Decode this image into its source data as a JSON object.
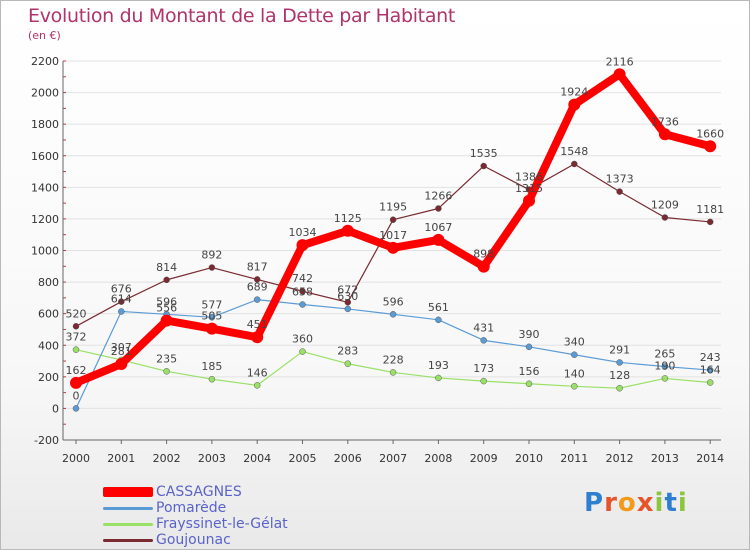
{
  "title": "Evolution du Montant de la Dette par Habitant",
  "subtitle": "(en €)",
  "logo_text": "Proxiti",
  "chart_data": {
    "type": "line",
    "title": "Evolution du Montant de la Dette par Habitant",
    "subtitle": "(en €)",
    "x": [
      "2000",
      "2001",
      "2002",
      "2003",
      "2004",
      "2005",
      "2006",
      "2007",
      "2008",
      "2009",
      "2010",
      "2011",
      "2012",
      "2013",
      "2014"
    ],
    "ylim": [
      -200,
      2200
    ],
    "yticks": [
      -200,
      0,
      200,
      400,
      600,
      800,
      1000,
      1200,
      1400,
      1600,
      1800,
      2000,
      2200
    ],
    "grid": "horizontal",
    "legend_position": "bottom-left",
    "series": [
      {
        "name": "CASSAGNES",
        "color": "#ff0000",
        "values": [
          162,
          281,
          556,
          505,
          451,
          1034,
          1125,
          1017,
          1067,
          898,
          1315,
          1924,
          2116,
          1736,
          1660
        ]
      },
      {
        "name": "Pomarède",
        "color": "#5b9bd5",
        "values": [
          0,
          614,
          596,
          577,
          689,
          658,
          630,
          596,
          561,
          431,
          390,
          340,
          291,
          265,
          243
        ]
      },
      {
        "name": "Frayssinet-le-Gélat",
        "color": "#99e066",
        "values": [
          372,
          307,
          235,
          185,
          146,
          360,
          283,
          228,
          193,
          173,
          156,
          140,
          128,
          190,
          164
        ]
      },
      {
        "name": "Goujounac",
        "color": "#7a2a30",
        "values": [
          520,
          676,
          814,
          892,
          817,
          742,
          672,
          1195,
          1266,
          1535,
          1386,
          1548,
          1373,
          1209,
          1181
        ]
      }
    ]
  }
}
